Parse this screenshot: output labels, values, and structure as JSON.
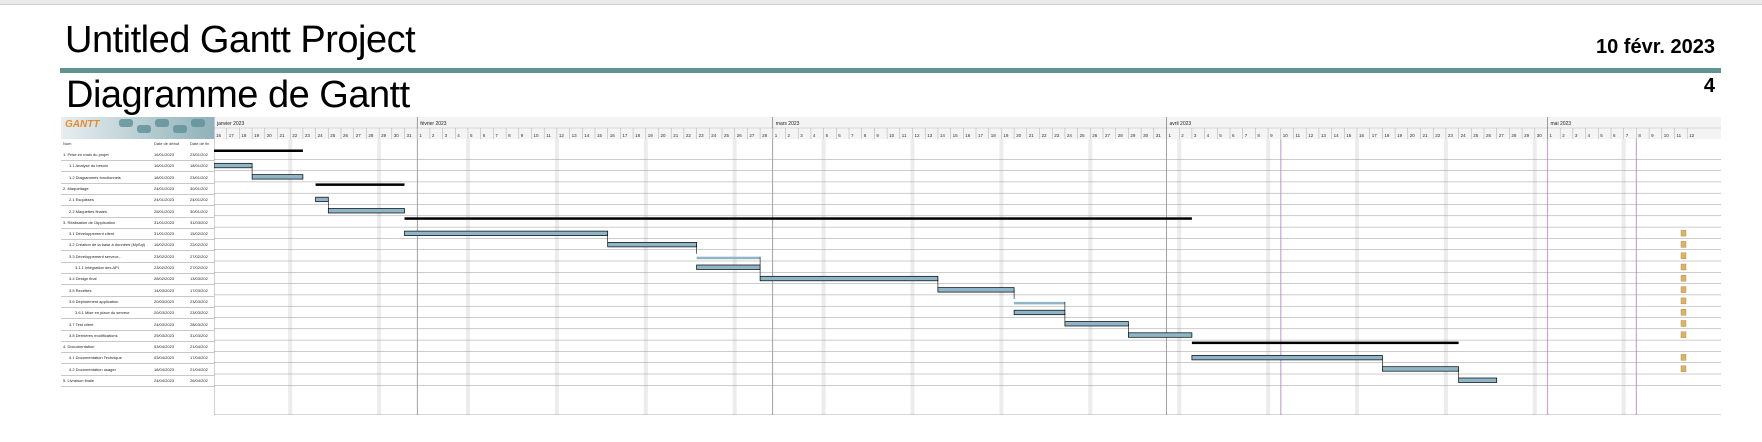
{
  "report": {
    "title": "Untitled Gantt Project",
    "date": "10 févr. 2023",
    "subtitle": "Diagramme de Gantt",
    "page_number": "4"
  },
  "logo_text": "GANTT",
  "table_headers": {
    "name": "Nom",
    "start": "Date de début",
    "end": "Date de fin"
  },
  "timeline": {
    "months": [
      "janvier 2023",
      "février 2023",
      "mars 2023",
      "avril 2023",
      "mai 2023"
    ],
    "first_day": "2023-01-16",
    "last_day": "2023-05-12"
  },
  "colors": {
    "accent_rule": "#5f9490",
    "task_fill": "#8fb6c8",
    "summary_bar": "#000000",
    "marker": "#d9b36a",
    "grid_line": "#d5d5d5",
    "weekend_line": "#c9a6d9"
  },
  "tasks": [
    {
      "name": "1. Prise en main du projet",
      "start_label": "16/01/2023",
      "end_label": "23/01/202",
      "start": "2023-01-16",
      "end": "2023-01-23",
      "kind": "summary",
      "indent": 0,
      "marker": false
    },
    {
      "name": "1.1 Analyse du besoin",
      "start_label": "16/01/2023",
      "end_label": "18/01/202",
      "start": "2023-01-16",
      "end": "2023-01-19",
      "kind": "task",
      "indent": 1,
      "marker": false
    },
    {
      "name": "1.2 Diagrammes fonctionnels",
      "start_label": "18/01/2023",
      "end_label": "23/01/202",
      "start": "2023-01-19",
      "end": "2023-01-23",
      "kind": "task",
      "indent": 1,
      "marker": false
    },
    {
      "name": "2. Maquettage",
      "start_label": "24/01/2023",
      "end_label": "30/01/202",
      "start": "2023-01-24",
      "end": "2023-01-31",
      "kind": "summary",
      "indent": 0,
      "marker": false
    },
    {
      "name": "2.1 Esquisses",
      "start_label": "24/01/2023",
      "end_label": "24/01/202",
      "start": "2023-01-24",
      "end": "2023-01-25",
      "kind": "task",
      "indent": 1,
      "marker": false
    },
    {
      "name": "2.2 Maquettes finales",
      "start_label": "25/01/2023",
      "end_label": "30/01/202",
      "start": "2023-01-25",
      "end": "2023-01-31",
      "kind": "task",
      "indent": 1,
      "marker": false
    },
    {
      "name": "3. Réalisation de l'Application",
      "start_label": "31/01/2023",
      "end_label": "31/03/202",
      "start": "2023-01-31",
      "end": "2023-04-03",
      "kind": "summary",
      "indent": 0,
      "marker": false
    },
    {
      "name": "3.1 Développement client",
      "start_label": "31/01/2023",
      "end_label": "15/02/202",
      "start": "2023-01-31",
      "end": "2023-02-16",
      "kind": "task",
      "indent": 1,
      "marker": true
    },
    {
      "name": "3.2 Création de la base à données (MySql)",
      "start_label": "16/02/2023",
      "end_label": "22/02/202",
      "start": "2023-02-16",
      "end": "2023-02-23",
      "kind": "task",
      "indent": 1,
      "marker": true
    },
    {
      "name": "3.3 Développement serveur...",
      "start_label": "23/02/2023",
      "end_label": "27/02/202",
      "start": "2023-02-23",
      "end": "2023-02-28",
      "kind": "parent",
      "indent": 1,
      "marker": true
    },
    {
      "name": "3.1.1 Intégration des API",
      "start_label": "23/02/2023",
      "end_label": "27/02/202",
      "start": "2023-02-23",
      "end": "2023-02-28",
      "kind": "task",
      "indent": 2,
      "marker": true
    },
    {
      "name": "3.4 Design final",
      "start_label": "28/02/2023",
      "end_label": "13/03/202",
      "start": "2023-02-28",
      "end": "2023-03-14",
      "kind": "task",
      "indent": 1,
      "marker": true
    },
    {
      "name": "3.5 Recettes",
      "start_label": "14/03/2023",
      "end_label": "17/03/202",
      "start": "2023-03-14",
      "end": "2023-03-20",
      "kind": "task",
      "indent": 1,
      "marker": true
    },
    {
      "name": "3.6 Déploiement application",
      "start_label": "20/03/2023",
      "end_label": "23/03/202",
      "start": "2023-03-20",
      "end": "2023-03-24",
      "kind": "parent",
      "indent": 1,
      "marker": true
    },
    {
      "name": "3.6.1 Mise en place du serveur",
      "start_label": "20/03/2023",
      "end_label": "23/03/202",
      "start": "2023-03-20",
      "end": "2023-03-24",
      "kind": "task",
      "indent": 2,
      "marker": true
    },
    {
      "name": "3.7 Test client",
      "start_label": "24/03/2023",
      "end_label": "28/03/202",
      "start": "2023-03-24",
      "end": "2023-03-29",
      "kind": "task",
      "indent": 1,
      "marker": true
    },
    {
      "name": "3.8 Dernières modifications",
      "start_label": "29/03/2023",
      "end_label": "31/03/202",
      "start": "2023-03-29",
      "end": "2023-04-03",
      "kind": "task",
      "indent": 1,
      "marker": true
    },
    {
      "name": "4. Documentation",
      "start_label": "03/04/2023",
      "end_label": "21/04/202",
      "start": "2023-04-03",
      "end": "2023-04-24",
      "kind": "summary",
      "indent": 0,
      "marker": false
    },
    {
      "name": "4.1 Documentation Technique",
      "start_label": "03/04/2023",
      "end_label": "17/04/202",
      "start": "2023-04-03",
      "end": "2023-04-18",
      "kind": "task",
      "indent": 1,
      "marker": true
    },
    {
      "name": "4.2 Documentation usager",
      "start_label": "18/04/2023",
      "end_label": "21/04/202",
      "start": "2023-04-18",
      "end": "2023-04-24",
      "kind": "task",
      "indent": 1,
      "marker": true
    },
    {
      "name": "5. Livraison finale",
      "start_label": "24/04/2023",
      "end_label": "26/04/202",
      "start": "2023-04-24",
      "end": "2023-04-27",
      "kind": "task",
      "indent": 0,
      "marker": false
    }
  ]
}
